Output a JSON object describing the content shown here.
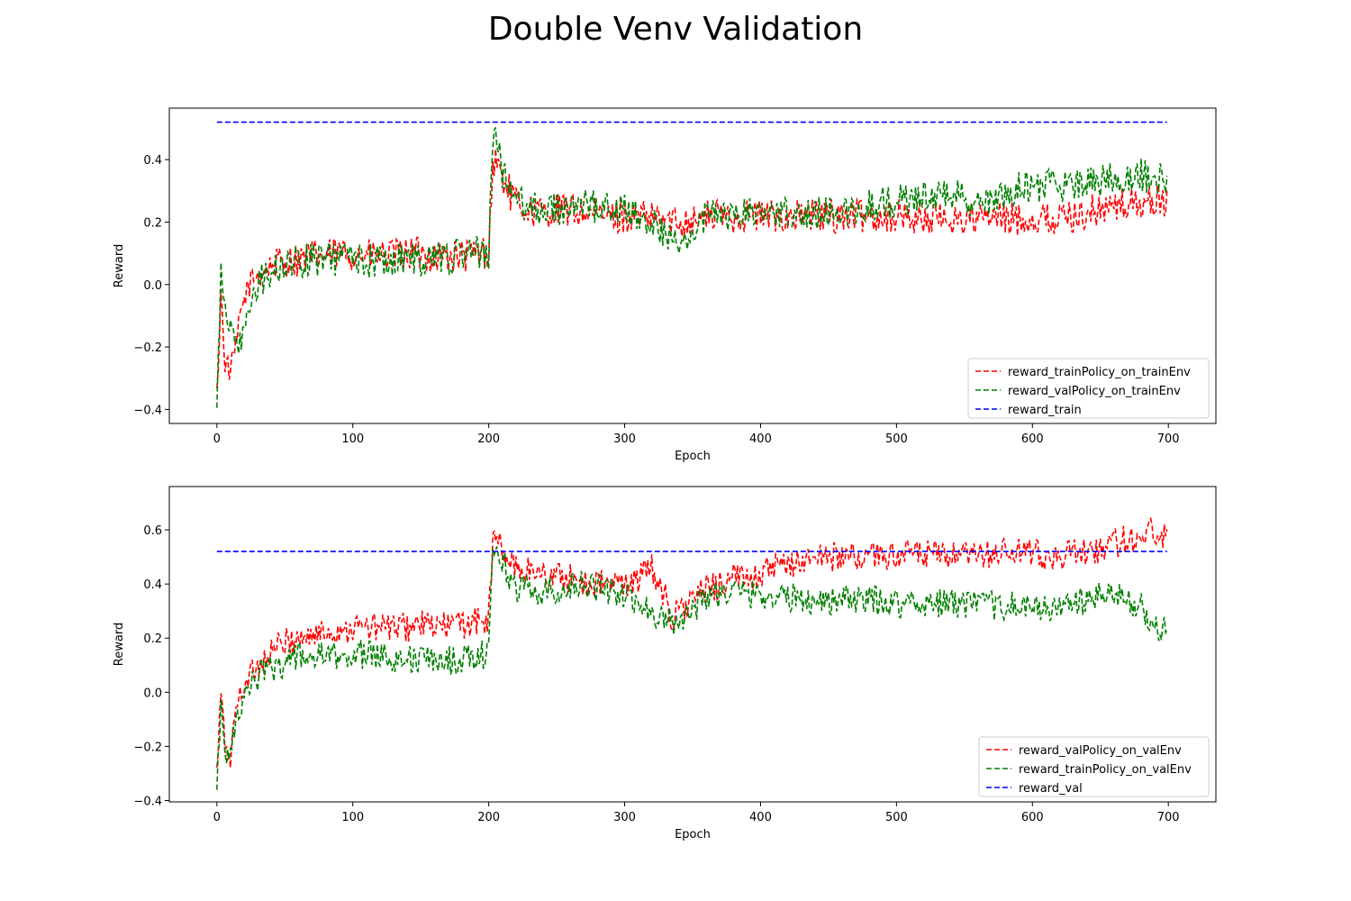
{
  "figure": {
    "title": "Double Venv Validation"
  },
  "chart_data": [
    {
      "type": "line",
      "title": "",
      "xlabel": "Epoch",
      "ylabel": "Reward",
      "xlim": [
        -35,
        735
      ],
      "ylim": [
        -0.445,
        0.565
      ],
      "xticks": [
        0,
        100,
        200,
        300,
        400,
        500,
        600,
        700
      ],
      "yticks": [
        -0.4,
        -0.2,
        0.0,
        0.2,
        0.4
      ],
      "ytick_labels": [
        "−0.4",
        "−0.2",
        "0.0",
        "0.2",
        "0.4"
      ],
      "grid": false,
      "legend_position": "lower-right",
      "series": [
        {
          "name": "reward_trainPolicy_on_trainEnv",
          "color": "#ff0000",
          "style": "dashed",
          "x": [
            0,
            3,
            6,
            10,
            14,
            18,
            22,
            26,
            30,
            35,
            40,
            45,
            50,
            55,
            60,
            70,
            80,
            90,
            100,
            110,
            120,
            130,
            140,
            150,
            160,
            170,
            180,
            190,
            195,
            200,
            203,
            206,
            210,
            215,
            220,
            230,
            240,
            250,
            260,
            270,
            280,
            290,
            300,
            320,
            340,
            360,
            380,
            400,
            420,
            440,
            460,
            480,
            500,
            520,
            540,
            560,
            580,
            600,
            620,
            640,
            660,
            680,
            699
          ],
          "y": [
            -0.36,
            -0.03,
            -0.25,
            -0.28,
            -0.2,
            -0.08,
            -0.02,
            0.02,
            0.03,
            0.05,
            0.06,
            0.07,
            0.07,
            0.08,
            0.08,
            0.09,
            0.09,
            0.1,
            0.1,
            0.09,
            0.09,
            0.09,
            0.1,
            0.1,
            0.09,
            0.09,
            0.09,
            0.1,
            0.1,
            0.11,
            0.38,
            0.4,
            0.34,
            0.3,
            0.26,
            0.24,
            0.23,
            0.24,
            0.24,
            0.23,
            0.22,
            0.22,
            0.22,
            0.21,
            0.2,
            0.22,
            0.22,
            0.22,
            0.22,
            0.22,
            0.22,
            0.22,
            0.22,
            0.21,
            0.21,
            0.21,
            0.21,
            0.21,
            0.21,
            0.23,
            0.25,
            0.26,
            0.27
          ]
        },
        {
          "name": "reward_valPolicy_on_trainEnv",
          "color": "#008000",
          "style": "dashed",
          "x": [
            0,
            3,
            6,
            10,
            14,
            18,
            22,
            26,
            30,
            35,
            40,
            45,
            50,
            55,
            60,
            70,
            80,
            90,
            100,
            110,
            120,
            130,
            140,
            150,
            160,
            170,
            180,
            190,
            195,
            200,
            203,
            206,
            210,
            215,
            220,
            230,
            240,
            250,
            260,
            270,
            280,
            290,
            300,
            320,
            340,
            360,
            380,
            400,
            420,
            440,
            460,
            480,
            500,
            520,
            540,
            560,
            580,
            600,
            620,
            640,
            660,
            680,
            699
          ],
          "y": [
            -0.39,
            0.03,
            -0.05,
            -0.15,
            -0.2,
            -0.18,
            -0.12,
            -0.05,
            0.0,
            0.02,
            0.04,
            0.05,
            0.06,
            0.07,
            0.07,
            0.08,
            0.08,
            0.08,
            0.09,
            0.08,
            0.07,
            0.08,
            0.09,
            0.08,
            0.08,
            0.09,
            0.09,
            0.1,
            0.1,
            0.1,
            0.44,
            0.47,
            0.36,
            0.3,
            0.27,
            0.25,
            0.24,
            0.24,
            0.25,
            0.25,
            0.25,
            0.25,
            0.24,
            0.2,
            0.12,
            0.22,
            0.22,
            0.23,
            0.24,
            0.23,
            0.23,
            0.25,
            0.27,
            0.28,
            0.3,
            0.25,
            0.3,
            0.32,
            0.31,
            0.33,
            0.34,
            0.35,
            0.34
          ]
        },
        {
          "name": "reward_train",
          "color": "#0000ff",
          "style": "dashed",
          "x": [
            0,
            699
          ],
          "y": [
            0.52,
            0.52
          ]
        }
      ]
    },
    {
      "type": "line",
      "title": "",
      "xlabel": "Epoch",
      "ylabel": "Reward",
      "xlim": [
        -35,
        735
      ],
      "ylim": [
        -0.405,
        0.76
      ],
      "xticks": [
        0,
        100,
        200,
        300,
        400,
        500,
        600,
        700
      ],
      "yticks": [
        -0.4,
        -0.2,
        0.0,
        0.2,
        0.4,
        0.6
      ],
      "ytick_labels": [
        "−0.4",
        "−0.2",
        "0.0",
        "0.2",
        "0.4",
        "0.6"
      ],
      "grid": false,
      "legend_position": "lower-right",
      "series": [
        {
          "name": "reward_valPolicy_on_valEnv",
          "color": "#ff0000",
          "style": "dashed",
          "x": [
            0,
            3,
            6,
            10,
            14,
            18,
            22,
            26,
            30,
            35,
            40,
            45,
            50,
            55,
            60,
            70,
            80,
            90,
            100,
            110,
            120,
            130,
            140,
            150,
            160,
            170,
            180,
            190,
            195,
            200,
            203,
            206,
            210,
            215,
            220,
            230,
            240,
            250,
            260,
            270,
            280,
            290,
            300,
            310,
            320,
            330,
            335,
            340,
            350,
            360,
            380,
            400,
            420,
            440,
            460,
            480,
            500,
            520,
            540,
            560,
            580,
            600,
            620,
            640,
            660,
            680,
            690,
            699
          ],
          "y": [
            -0.3,
            0.0,
            -0.2,
            -0.25,
            -0.05,
            0.0,
            0.05,
            0.08,
            0.1,
            0.12,
            0.15,
            0.17,
            0.18,
            0.19,
            0.2,
            0.21,
            0.22,
            0.23,
            0.24,
            0.24,
            0.24,
            0.24,
            0.24,
            0.25,
            0.24,
            0.25,
            0.25,
            0.26,
            0.26,
            0.27,
            0.55,
            0.57,
            0.52,
            0.48,
            0.46,
            0.45,
            0.44,
            0.43,
            0.42,
            0.41,
            0.4,
            0.4,
            0.4,
            0.42,
            0.46,
            0.35,
            0.27,
            0.3,
            0.34,
            0.38,
            0.42,
            0.44,
            0.47,
            0.5,
            0.5,
            0.5,
            0.51,
            0.51,
            0.5,
            0.5,
            0.52,
            0.51,
            0.5,
            0.52,
            0.55,
            0.58,
            0.6,
            0.56
          ]
        },
        {
          "name": "reward_trainPolicy_on_valEnv",
          "color": "#008000",
          "style": "dashed",
          "x": [
            0,
            3,
            6,
            10,
            14,
            18,
            22,
            26,
            30,
            35,
            40,
            45,
            50,
            55,
            60,
            70,
            80,
            90,
            100,
            110,
            120,
            130,
            140,
            150,
            160,
            170,
            180,
            190,
            195,
            200,
            203,
            206,
            210,
            215,
            220,
            230,
            240,
            250,
            260,
            270,
            280,
            290,
            300,
            310,
            320,
            330,
            335,
            340,
            350,
            360,
            380,
            400,
            420,
            440,
            460,
            480,
            500,
            520,
            540,
            560,
            580,
            600,
            620,
            640,
            660,
            680,
            690,
            699
          ],
          "y": [
            -0.35,
            -0.05,
            -0.25,
            -0.2,
            -0.12,
            -0.05,
            0.0,
            0.04,
            0.06,
            0.08,
            0.09,
            0.1,
            0.11,
            0.12,
            0.13,
            0.13,
            0.13,
            0.13,
            0.14,
            0.14,
            0.14,
            0.13,
            0.12,
            0.12,
            0.12,
            0.12,
            0.12,
            0.13,
            0.14,
            0.16,
            0.52,
            0.55,
            0.48,
            0.43,
            0.39,
            0.38,
            0.37,
            0.38,
            0.39,
            0.4,
            0.39,
            0.37,
            0.35,
            0.33,
            0.3,
            0.27,
            0.26,
            0.28,
            0.3,
            0.36,
            0.37,
            0.36,
            0.35,
            0.34,
            0.34,
            0.34,
            0.33,
            0.33,
            0.33,
            0.32,
            0.32,
            0.31,
            0.31,
            0.34,
            0.36,
            0.32,
            0.22,
            0.26
          ]
        },
        {
          "name": "reward_val",
          "color": "#0000ff",
          "style": "dashed",
          "x": [
            0,
            699
          ],
          "y": [
            0.52,
            0.52
          ]
        }
      ]
    }
  ]
}
